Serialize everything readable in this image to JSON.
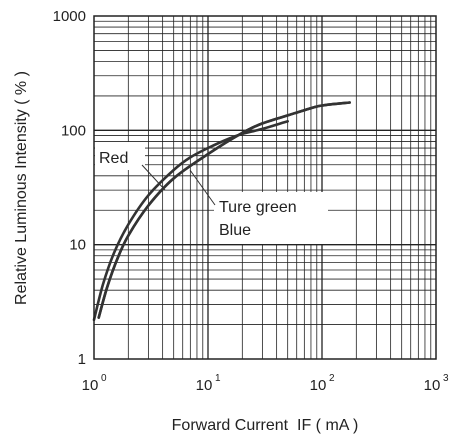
{
  "chart_data": {
    "type": "line",
    "xscale": "log",
    "yscale": "log",
    "xlim": [
      1,
      1000
    ],
    "ylim": [
      1,
      1000
    ],
    "grid": true,
    "xlabel": "Forward Current  IF ( mA )",
    "ylabel": "Relative Luminous Intensity ( % )",
    "x_ticks": [
      {
        "base": "10",
        "exp": "0",
        "value": 1
      },
      {
        "base": "10",
        "exp": "1",
        "value": 10
      },
      {
        "base": "10",
        "exp": "2",
        "value": 100
      },
      {
        "base": "10",
        "exp": "3",
        "value": 1000
      }
    ],
    "y_ticks": [
      {
        "label": "1",
        "value": 1
      },
      {
        "label": "10",
        "value": 10
      },
      {
        "label": "100",
        "value": 100
      },
      {
        "label": "1000",
        "value": 1000
      }
    ],
    "series": [
      {
        "name": "Red",
        "points": [
          [
            1.0,
            2.2
          ],
          [
            1.2,
            4.5
          ],
          [
            1.5,
            8.5
          ],
          [
            2,
            15
          ],
          [
            3,
            27
          ],
          [
            5,
            45
          ],
          [
            7,
            58
          ],
          [
            10,
            70
          ],
          [
            15,
            84
          ],
          [
            20,
            93
          ],
          [
            30,
            103
          ],
          [
            50,
            120
          ]
        ]
      },
      {
        "name": "Ture green",
        "points": [
          [
            1.1,
            2.3
          ],
          [
            1.3,
            4.2
          ],
          [
            1.6,
            7.5
          ],
          [
            2,
            12
          ],
          [
            3,
            22
          ],
          [
            5,
            38
          ],
          [
            10,
            62
          ],
          [
            20,
            95
          ],
          [
            30,
            115
          ],
          [
            50,
            135
          ],
          [
            70,
            150
          ],
          [
            100,
            165
          ],
          [
            175,
            175
          ]
        ]
      },
      {
        "name": "Blue",
        "points": [
          [
            1.1,
            2.3
          ],
          [
            1.3,
            4.2
          ],
          [
            1.6,
            7.5
          ],
          [
            2,
            12
          ],
          [
            3,
            22
          ],
          [
            5,
            38
          ],
          [
            10,
            62
          ],
          [
            20,
            95
          ],
          [
            30,
            115
          ],
          [
            50,
            135
          ],
          [
            70,
            150
          ],
          [
            100,
            165
          ],
          [
            175,
            175
          ]
        ]
      }
    ],
    "annotations": {
      "red_label": "Red",
      "green_label": "Ture green",
      "blue_label": "Blue"
    },
    "colors": {
      "curve": "#333333",
      "grid": "#222222"
    }
  }
}
